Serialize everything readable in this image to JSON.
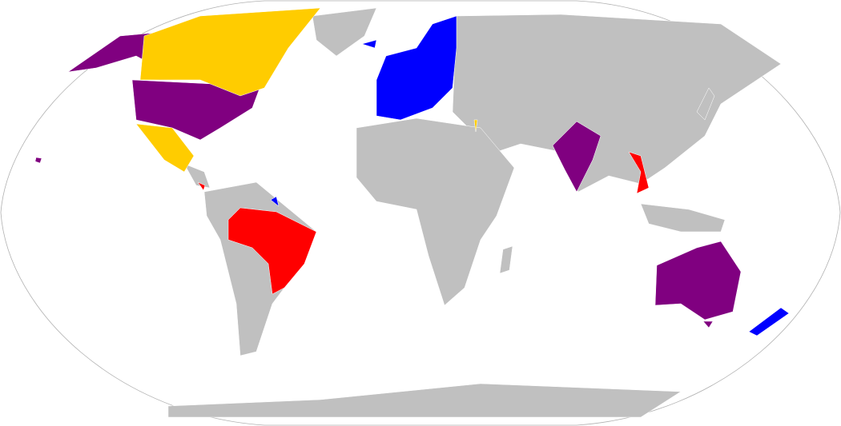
{
  "map": {
    "projection": "Robinson",
    "colors": {
      "ocean": "#ffffff",
      "land_default": "#c0c0c0",
      "border": "#ffffff",
      "outline": "#b0b0b0",
      "category_purple": "#800080",
      "category_gold": "#ffcc00",
      "category_blue": "#0000ff",
      "category_red": "#ff0000"
    }
  }
}
